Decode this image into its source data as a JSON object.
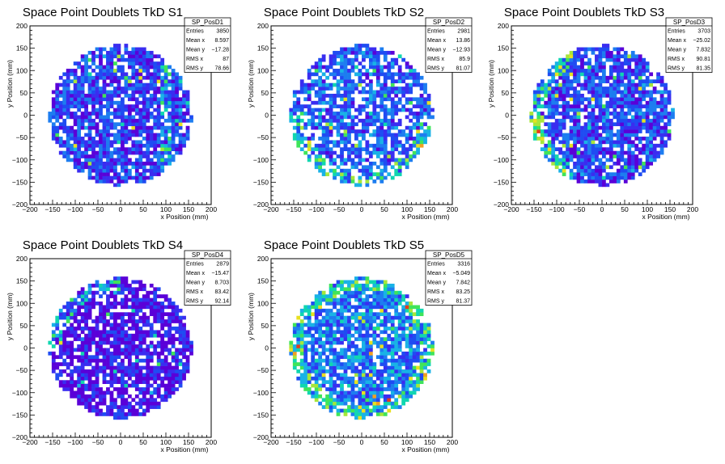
{
  "chart_data": [
    {
      "type": "heatmap",
      "title": "Space Point Doublets TkD S1",
      "xlabel": "x Position (mm)",
      "ylabel": "y Position (mm)",
      "xlim": [
        -200,
        200
      ],
      "ylim": [
        -200,
        200
      ],
      "xticks": [
        "−200",
        "−150",
        "−100",
        "−50",
        "0",
        "50",
        "100",
        "150",
        "200"
      ],
      "yticks": [
        "−200",
        "−150",
        "−100",
        "−50",
        "0",
        "50",
        "100",
        "150",
        "200"
      ],
      "grid": false,
      "stats": {
        "name": "SP_PosD1",
        "rows": [
          [
            "Entries",
            "3850"
          ],
          [
            "Mean x",
            "8.597"
          ],
          [
            "Mean y",
            "−17.28"
          ],
          [
            "RMS x",
            "87"
          ],
          [
            "RMS y",
            "78.66"
          ]
        ]
      },
      "color_profile": {
        "avg": 0.18,
        "hot_arc": "right",
        "empty": 0.18
      }
    },
    {
      "type": "heatmap",
      "title": "Space Point Doublets TkD S2",
      "xlabel": "x Position (mm)",
      "ylabel": "y Position (mm)",
      "xlim": [
        -200,
        200
      ],
      "ylim": [
        -200,
        200
      ],
      "xticks": [
        "−200",
        "−150",
        "−100",
        "−50",
        "0",
        "50",
        "100",
        "150",
        "200"
      ],
      "yticks": [
        "−200",
        "−150",
        "−100",
        "−50",
        "0",
        "50",
        "100",
        "150",
        "200"
      ],
      "grid": false,
      "stats": {
        "name": "SP_PosD2",
        "rows": [
          [
            "Entries",
            "2981"
          ],
          [
            "Mean x",
            "13.86"
          ],
          [
            "Mean y",
            "−12.93"
          ],
          [
            "RMS x",
            "85.9"
          ],
          [
            "RMS y",
            "81.07"
          ]
        ]
      },
      "color_profile": {
        "avg": 0.24,
        "hot_arc": "lower",
        "empty": 0.3
      }
    },
    {
      "type": "heatmap",
      "title": "Space Point Doublets TkD S3",
      "xlabel": "x Position (mm)",
      "ylabel": "y Position (mm)",
      "xlim": [
        -200,
        200
      ],
      "ylim": [
        -200,
        200
      ],
      "xticks": [
        "−200",
        "−150",
        "−100",
        "−50",
        "0",
        "50",
        "100",
        "150",
        "200"
      ],
      "yticks": [
        "−200",
        "−150",
        "−100",
        "−50",
        "0",
        "50",
        "100",
        "150",
        "200"
      ],
      "grid": false,
      "stats": {
        "name": "SP_PosD3",
        "rows": [
          [
            "Entries",
            "3703"
          ],
          [
            "Mean x",
            "−25.02"
          ],
          [
            "Mean y",
            "7.832"
          ],
          [
            "RMS x",
            "90.81"
          ],
          [
            "RMS y",
            "81.35"
          ]
        ]
      },
      "color_profile": {
        "avg": 0.2,
        "hot_arc": "left",
        "empty": 0.2
      }
    },
    {
      "type": "heatmap",
      "title": "Space Point Doublets TkD S4",
      "xlabel": "x Position (mm)",
      "ylabel": "y Position (mm)",
      "xlim": [
        -200,
        200
      ],
      "ylim": [
        -200,
        200
      ],
      "xticks": [
        "−200",
        "−150",
        "−100",
        "−50",
        "0",
        "50",
        "100",
        "150",
        "200"
      ],
      "yticks": [
        "−200",
        "−150",
        "−100",
        "−50",
        "0",
        "50",
        "100",
        "150",
        "200"
      ],
      "grid": false,
      "stats": {
        "name": "SP_PosD4",
        "rows": [
          [
            "Entries",
            "2879"
          ],
          [
            "Mean x",
            "−15.47"
          ],
          [
            "Mean y",
            "8.703"
          ],
          [
            "RMS x",
            "83.42"
          ],
          [
            "RMS y",
            "92.14"
          ]
        ]
      },
      "color_profile": {
        "avg": 0.08,
        "hot_arc": "upper-left",
        "empty": 0.25
      }
    },
    {
      "type": "heatmap",
      "title": "Space Point Doublets TkD S5",
      "xlabel": "x Position (mm)",
      "ylabel": "y Position (mm)",
      "xlim": [
        -200,
        200
      ],
      "ylim": [
        -200,
        200
      ],
      "xticks": [
        "−200",
        "−150",
        "−100",
        "−50",
        "0",
        "50",
        "100",
        "150",
        "200"
      ],
      "yticks": [
        "−200",
        "−150",
        "−100",
        "−50",
        "0",
        "50",
        "100",
        "150",
        "200"
      ],
      "grid": false,
      "stats": {
        "name": "SP_PosD5",
        "rows": [
          [
            "Entries",
            "3316"
          ],
          [
            "Mean x",
            "−5.049"
          ],
          [
            "Mean y",
            "7.842"
          ],
          [
            "RMS x",
            "83.25"
          ],
          [
            "RMS y",
            "81.37"
          ]
        ]
      },
      "color_profile": {
        "avg": 0.3,
        "hot_arc": "ring",
        "empty": 0.2
      }
    }
  ],
  "colors": {
    "palette": [
      "#5a00d8",
      "#3a2df0",
      "#1f4cf2",
      "#1d7df0",
      "#19b2e6",
      "#10d6b0",
      "#3fe45a",
      "#a6e63a",
      "#e8e020",
      "#f2a020",
      "#e83a1a"
    ]
  }
}
